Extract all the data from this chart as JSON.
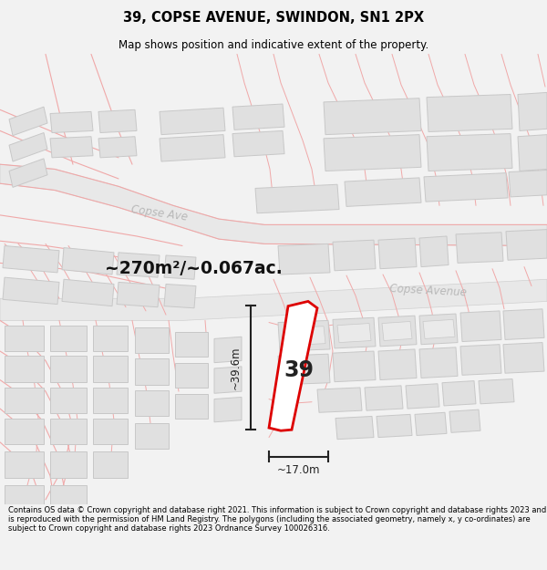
{
  "title": "39, COPSE AVENUE, SWINDON, SN1 2PX",
  "subtitle": "Map shows position and indicative extent of the property.",
  "area_label": "~270m²/~0.067ac.",
  "width_label": "~17.0m",
  "height_label": "~39.6m",
  "plot_number": "39",
  "footer": "Contains OS data © Crown copyright and database right 2021. This information is subject to Crown copyright and database rights 2023 and is reproduced with the permission of HM Land Registry. The polygons (including the associated geometry, namely x, y co-ordinates) are subject to Crown copyright and database rights 2023 Ordnance Survey 100026316.",
  "bg_color": "#f2f2f2",
  "map_bg": "#ffffff",
  "bld_fill": "#e0e0e0",
  "bld_edge": "#c8c8c8",
  "road_fill": "#e8e8e8",
  "road_edge": "#d0d0d0",
  "pink_line": "#f0a8a8",
  "highlight_color": "#dd0000",
  "road_label_color": "#b8b8b8",
  "street_name1": "Copse Ave",
  "street_name2": "Copse Avenue"
}
